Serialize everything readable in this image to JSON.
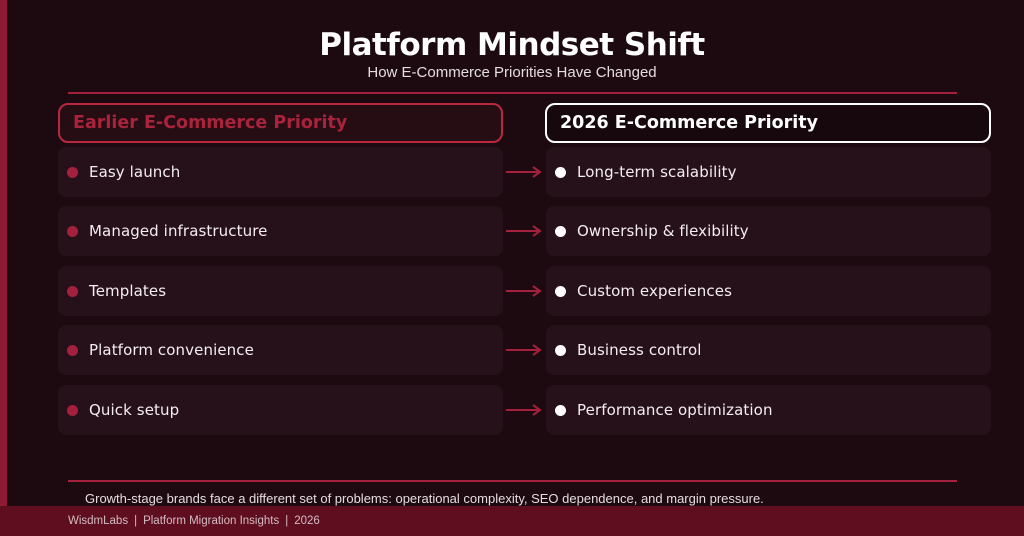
{
  "header": {
    "title": "Platform Mindset Shift",
    "subtitle": "How E-Commerce Priorities Have Changed"
  },
  "columns": {
    "left_title": "Earlier E-Commerce Priority",
    "right_title": "2026 E-Commerce Priority"
  },
  "rows": [
    {
      "earlier": "Easy launch",
      "now": "Long-term scalability"
    },
    {
      "earlier": "Managed infrastructure",
      "now": "Ownership & flexibility"
    },
    {
      "earlier": "Templates",
      "now": "Custom experiences"
    },
    {
      "earlier": "Platform convenience",
      "now": "Business control"
    },
    {
      "earlier": "Quick setup",
      "now": "Performance optimization"
    }
  ],
  "note": "Growth-stage brands face a different set of problems: operational complexity, SEO dependence, and margin pressure.",
  "footer": {
    "brand": "WisdmLabs",
    "series": "Platform Migration Insights",
    "year": "2026",
    "separator": "|"
  },
  "colors": {
    "accent": "#a3213d",
    "background": "#1c0a10",
    "footer": "#5e0e1e"
  },
  "icons": {
    "bullet": "dot-icon",
    "connector": "arrow-right-icon"
  }
}
